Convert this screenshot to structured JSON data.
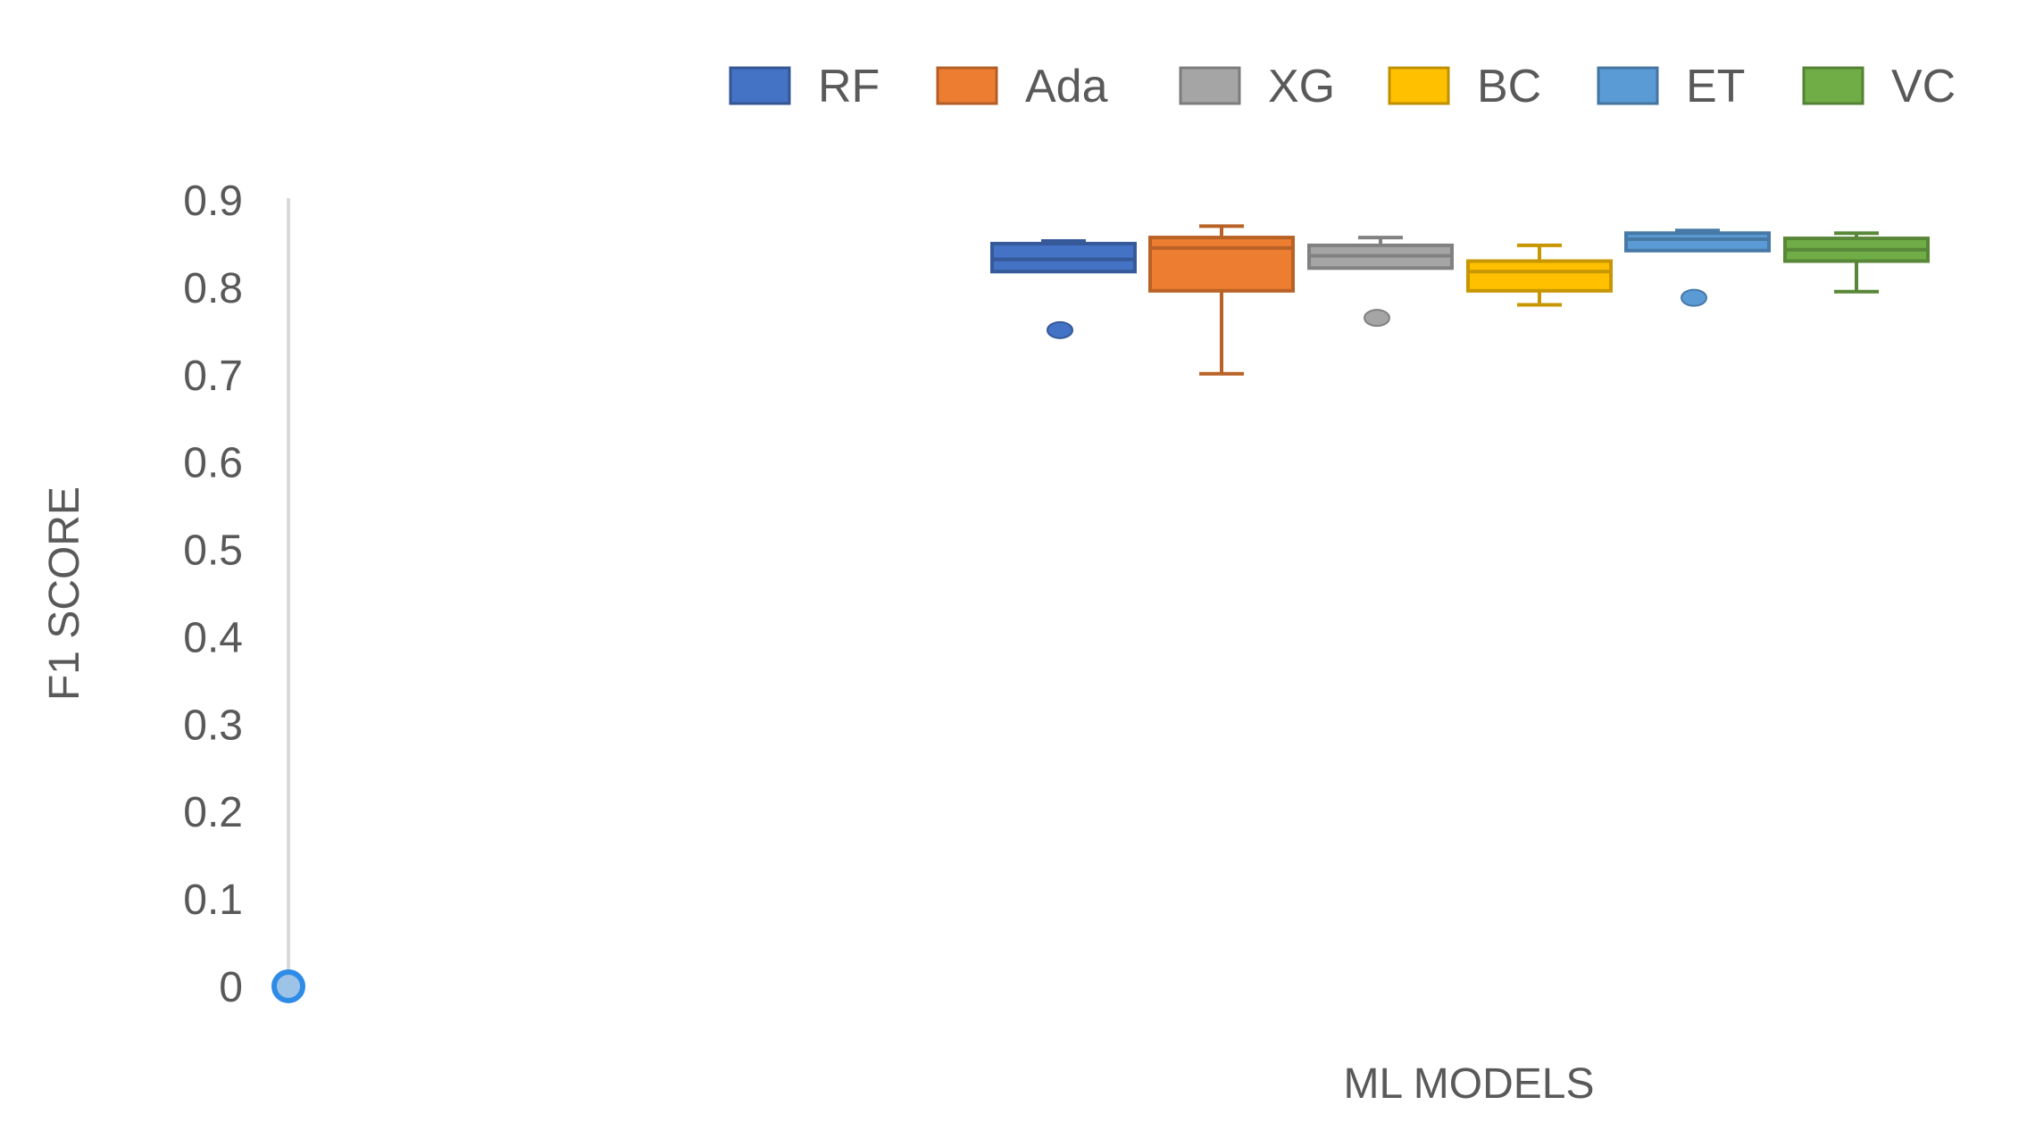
{
  "chart_data": {
    "type": "box",
    "title": "",
    "xlabel": "ML MODELS",
    "ylabel": "F1 SCORE",
    "ylim": [
      0,
      0.9
    ],
    "yticks": [
      "0",
      "0.1",
      "0.2",
      "0.3",
      "0.4",
      "0.5",
      "0.6",
      "0.7",
      "0.8",
      "0.9"
    ],
    "legend_position": "top",
    "grid": false,
    "series": [
      {
        "name": "RF",
        "color": "#4472C4",
        "min": 0.818,
        "q1": 0.818,
        "median": 0.832,
        "q3": 0.85,
        "max": 0.853,
        "outliers": [
          0.751
        ]
      },
      {
        "name": "Ada",
        "color": "#ED7D31",
        "min": 0.701,
        "q1": 0.796,
        "median": 0.845,
        "q3": 0.857,
        "max": 0.87,
        "outliers": []
      },
      {
        "name": "XG",
        "color": "#A5A5A5",
        "min": 0.822,
        "q1": 0.822,
        "median": 0.836,
        "q3": 0.848,
        "max": 0.857,
        "outliers": [
          0.765
        ]
      },
      {
        "name": "BC",
        "color": "#FFC000",
        "min": 0.78,
        "q1": 0.796,
        "median": 0.818,
        "q3": 0.83,
        "max": 0.848,
        "outliers": []
      },
      {
        "name": "ET",
        "color": "#5B9BD5",
        "min": 0.842,
        "q1": 0.842,
        "median": 0.855,
        "q3": 0.862,
        "max": 0.865,
        "outliers": [
          0.788
        ]
      },
      {
        "name": "VC",
        "color": "#70AD47",
        "min": 0.795,
        "q1": 0.83,
        "median": 0.843,
        "q3": 0.856,
        "max": 0.862,
        "outliers": []
      }
    ],
    "origin_marker": {
      "value": 0,
      "color": "#2E8BE6"
    }
  }
}
